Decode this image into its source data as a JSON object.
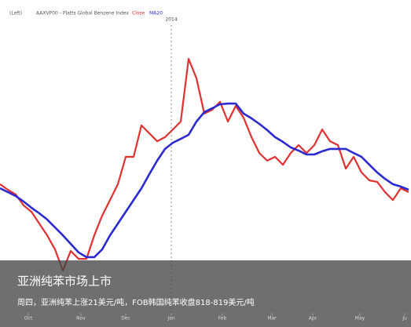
{
  "chart_data": {
    "type": "line",
    "title": "AAXVP00 - Platts Global Benzene Index",
    "axis_label": "(Left)",
    "annotation": "2014",
    "x": [
      0,
      1,
      2,
      3,
      4,
      5,
      6,
      7,
      8,
      9,
      10,
      11,
      12,
      13,
      14,
      15,
      16,
      17,
      18,
      19,
      20,
      21,
      22,
      23,
      24,
      25,
      26,
      27,
      28,
      29,
      30,
      31,
      32,
      33,
      34,
      35,
      36,
      37,
      38,
      39,
      40,
      41,
      42,
      43,
      44,
      45,
      46,
      47,
      48,
      49,
      50,
      51,
      52
    ],
    "xlim": [
      0,
      52.3
    ],
    "xticks": [
      {
        "value": 3.6,
        "label": "Oct"
      },
      {
        "value": 10.3,
        "label": "Nov"
      },
      {
        "value": 16,
        "label": "Dec"
      },
      {
        "value": 21.8,
        "label": "Jan"
      },
      {
        "value": 28.3,
        "label": "Feb"
      },
      {
        "value": 34.6,
        "label": "Mar"
      },
      {
        "value": 39.8,
        "label": "Apr"
      },
      {
        "value": 45.8,
        "label": "May"
      },
      {
        "value": 51.5,
        "label": "Ju"
      }
    ],
    "ylim": [
      0,
      100
    ],
    "series": [
      {
        "name": "Close",
        "color": "#e03030",
        "values": [
          42.7,
          40.8,
          39.2,
          35.5,
          33.3,
          29.3,
          25.3,
          20.5,
          13.3,
          20,
          17.3,
          17.3,
          25.3,
          32,
          37.3,
          42.7,
          52,
          52,
          62.7,
          60,
          57.3,
          58.7,
          61.3,
          64,
          85.3,
          78.7,
          66.7,
          68,
          70.7,
          64,
          69.3,
          65.3,
          58.7,
          53.3,
          50.7,
          52,
          49.3,
          53.3,
          56,
          53.3,
          56,
          61.3,
          57.3,
          56,
          48,
          52,
          46.7,
          44,
          43.5,
          40,
          37.3,
          41.3,
          40
        ]
      },
      {
        "name": "MA20",
        "color": "#2a2ad0",
        "values": [
          41.3,
          40,
          38.7,
          36.8,
          34.7,
          32.8,
          30.7,
          28,
          25.3,
          22.4,
          19.5,
          17.9,
          17.9,
          20.5,
          25.3,
          29.3,
          33.3,
          37.3,
          41.3,
          46.1,
          50.7,
          54.7,
          56.8,
          58.1,
          59.5,
          64,
          67.2,
          68.5,
          69.9,
          70.1,
          70.1,
          66.7,
          65.1,
          63.2,
          61.1,
          58.7,
          57.1,
          55.2,
          54.1,
          52.8,
          52.8,
          53.9,
          54.7,
          54.7,
          54.7,
          53.3,
          52,
          49.3,
          46.7,
          44.5,
          42.7,
          41.9,
          40.8
        ]
      }
    ]
  },
  "caption": {
    "headline": "亚洲纯苯市场上市",
    "subtext": "周四，亚洲纯苯上涨21美元/吨，FOB韩国纯苯收盘818-819美元/吨"
  }
}
